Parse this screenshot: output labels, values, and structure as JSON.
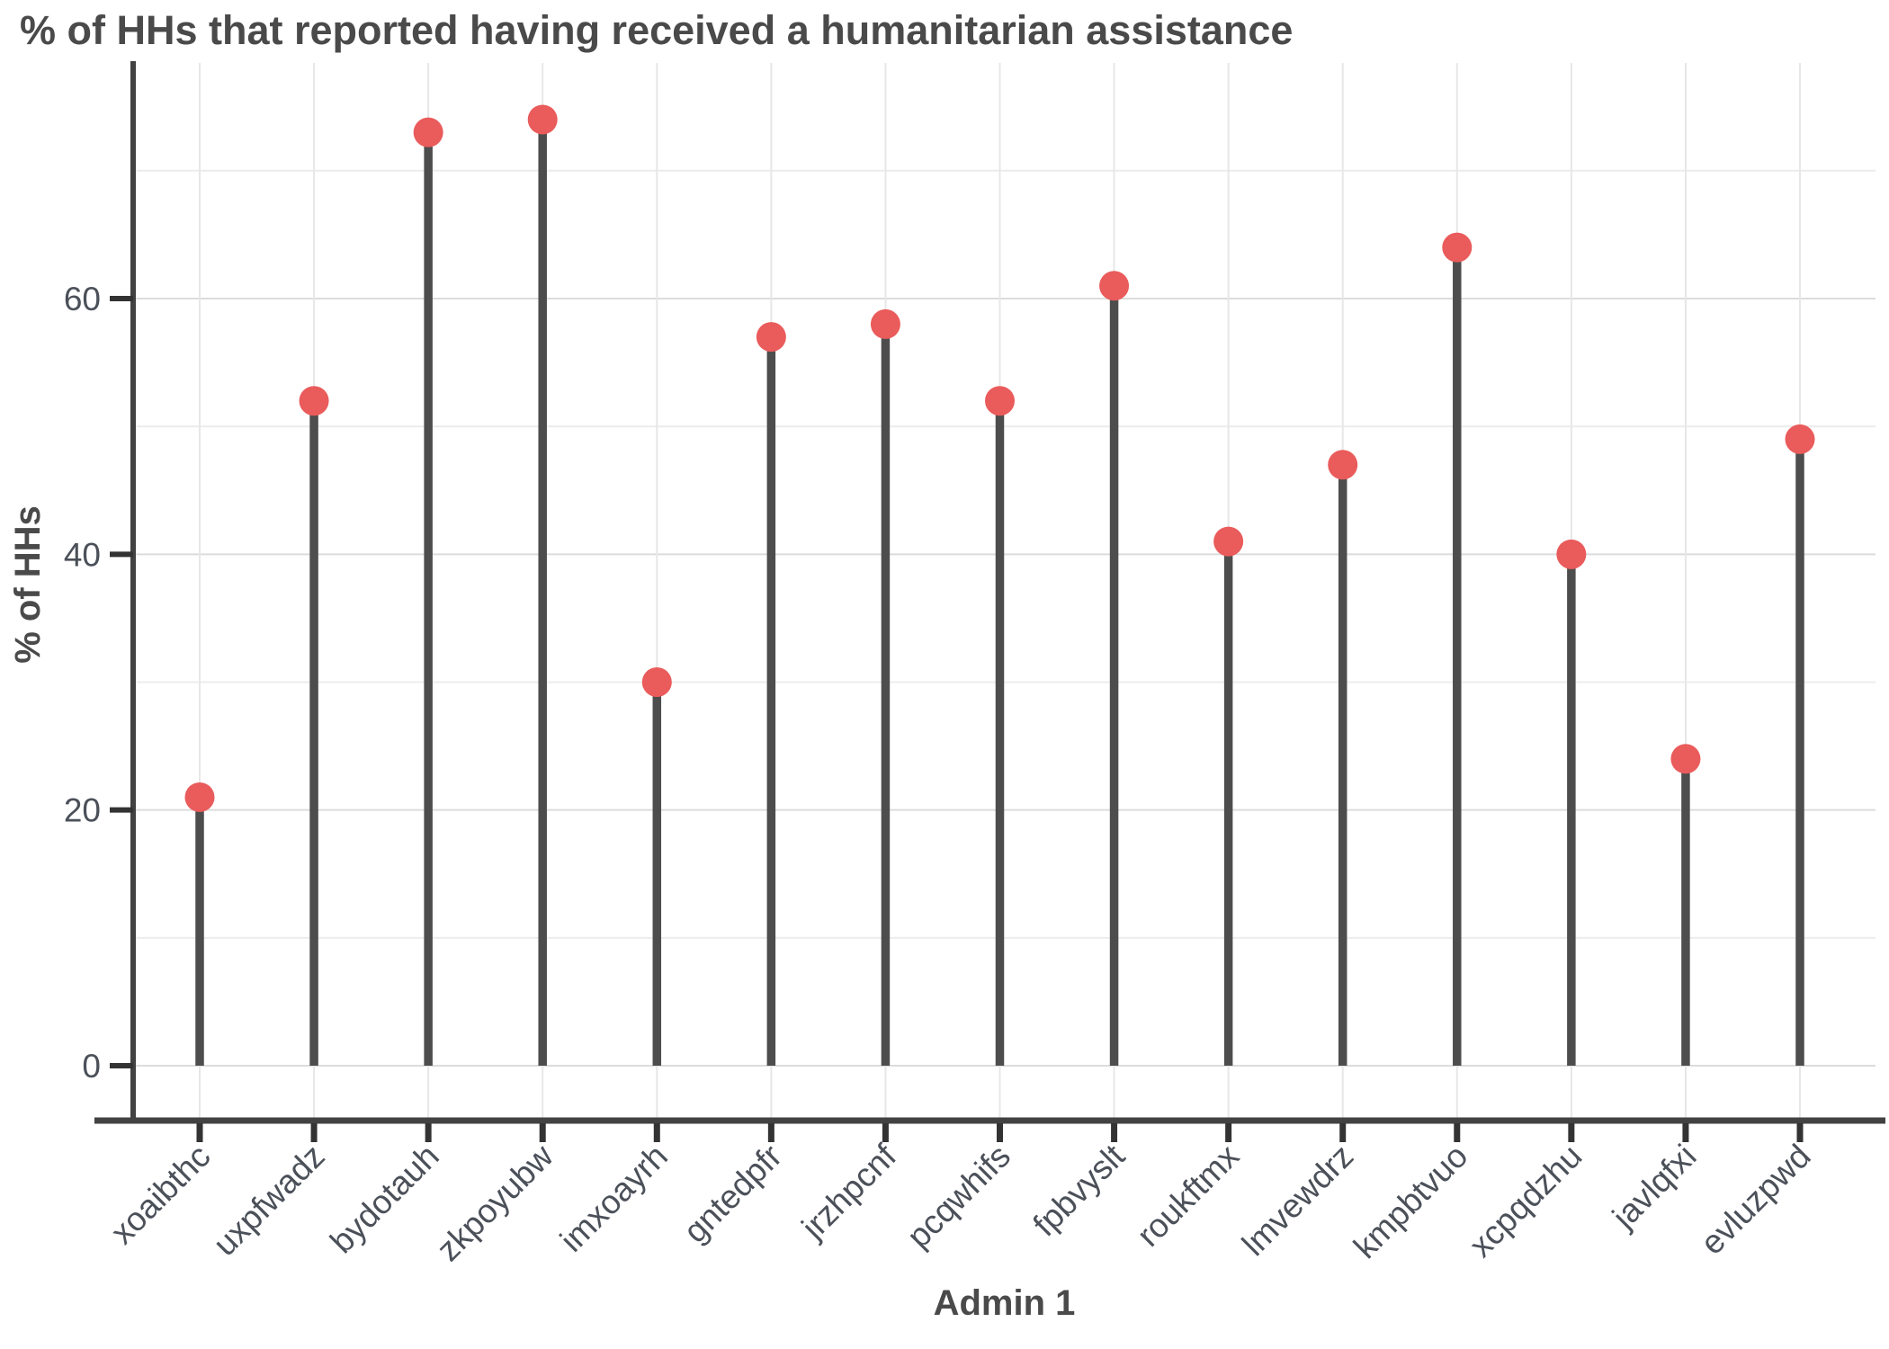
{
  "title": "% of HHs that reported having received a humanitarian assistance",
  "chart_data": {
    "type": "bar",
    "style": "lollipop",
    "title": "% of HHs that reported having received a humanitarian assistance",
    "xlabel": "Admin 1",
    "ylabel": "% of HHs",
    "categories": [
      "xoaibthc",
      "uxpfwadz",
      "bydotauh",
      "zkpoyubw",
      "imxoayrh",
      "gntedpfr",
      "jrzhpcnf",
      "pcqwhifs",
      "fpbvyslt",
      "roukftmx",
      "lmvewdrz",
      "kmpbtvuo",
      "xcpqdzhu",
      "javlqfxi",
      "evluzpwd"
    ],
    "values": [
      21,
      52,
      73,
      74,
      30,
      57,
      58,
      52,
      61,
      41,
      47,
      64,
      40,
      24,
      49
    ],
    "ylim": [
      0,
      78
    ],
    "yticks": [
      0,
      20,
      40,
      60
    ],
    "ytick_labels": [
      "0",
      "20",
      "40",
      "60"
    ],
    "minor_gridlines": [
      10,
      30,
      50,
      70
    ],
    "grid": true,
    "legend": "none",
    "colors": {
      "dot": "#EA5B5B",
      "stem": "#4D4D4D",
      "title_text": "#4A4A4A",
      "axis_title_text": "#4A4A4A",
      "tick_text": "#4B5059",
      "axis_line": "#424242",
      "tick_mark": "#333333",
      "grid_major": "#DCDCDC",
      "grid_minor": "#ECECEC",
      "grid_vertical": "#E7E7E7",
      "background": "#FFFFFF"
    }
  }
}
